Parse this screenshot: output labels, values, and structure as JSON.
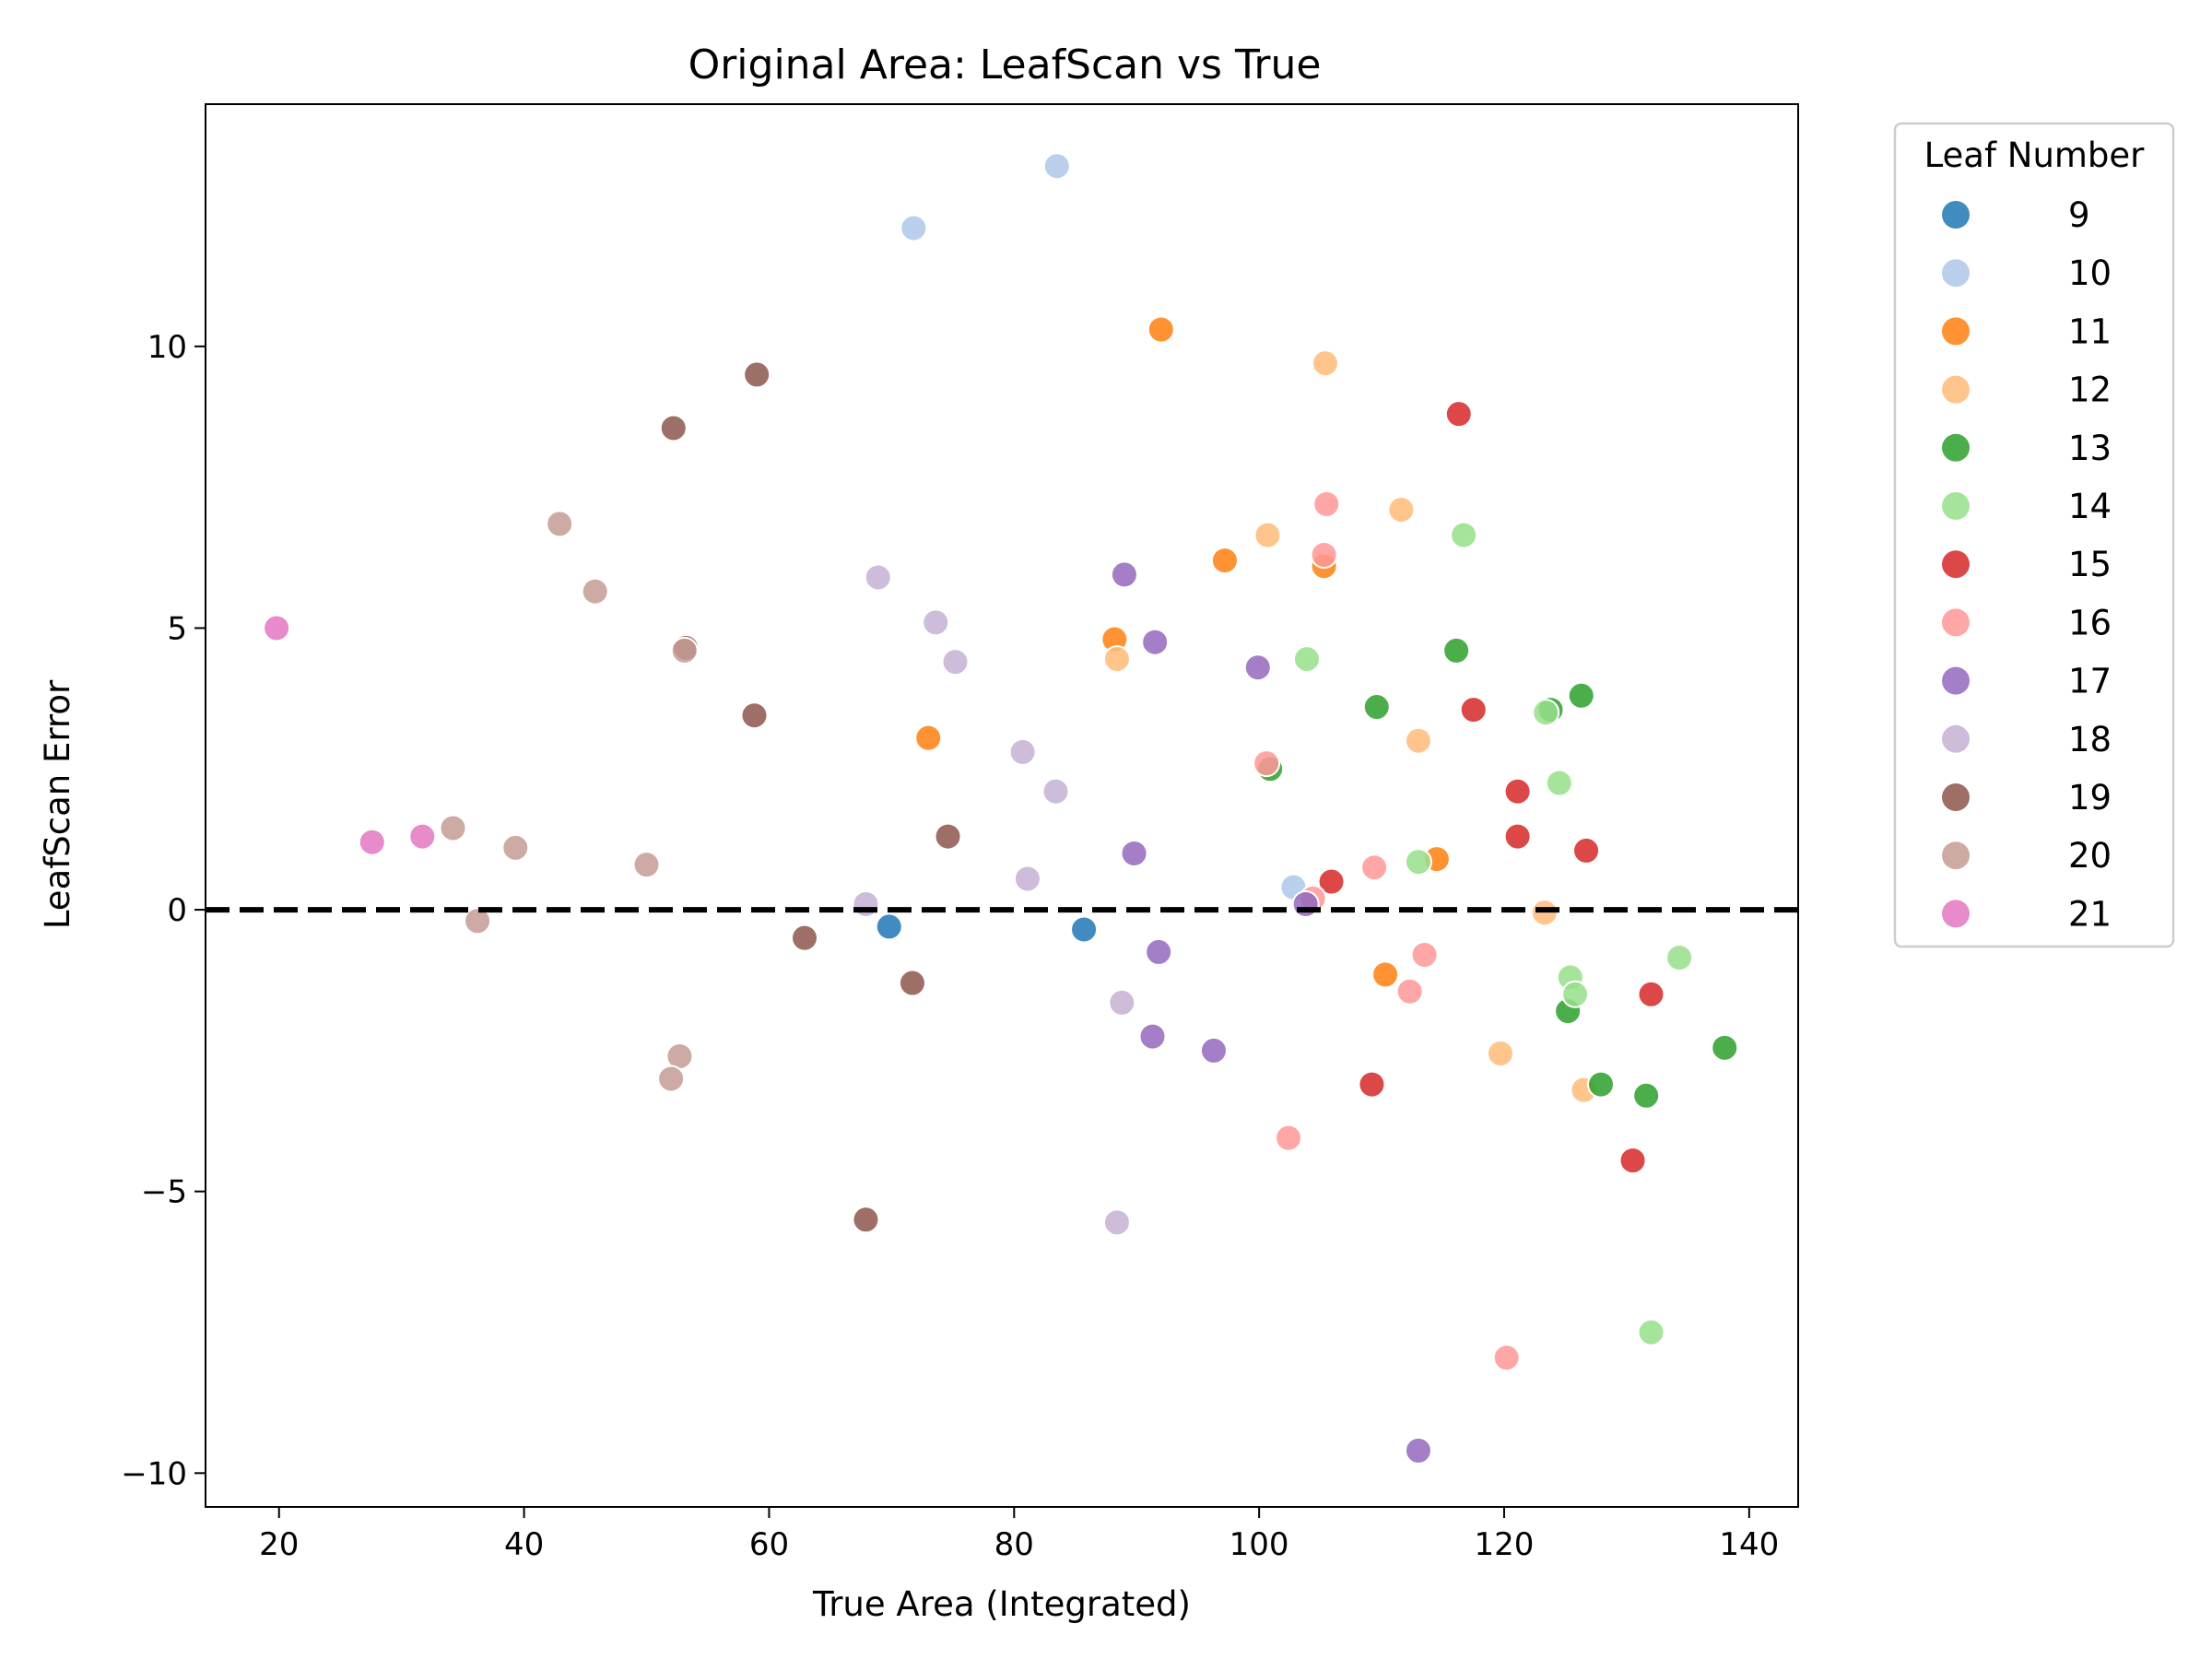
{
  "chart_data": {
    "type": "scatter",
    "title": "Original Area: LeafScan vs True",
    "xlabel": "True Area (Integrated)",
    "ylabel": "LeafScan Error",
    "xlim": [
      14,
      144
    ],
    "ylim": [
      -10.6,
      14.3
    ],
    "xticks": [
      20,
      40,
      60,
      80,
      100,
      120,
      140
    ],
    "yticks": [
      -10,
      -5,
      0,
      5,
      10
    ],
    "ytick_labels": [
      "−10",
      "−5",
      "0",
      "5",
      "10"
    ],
    "reference_line": {
      "y": 0,
      "style": "dashed",
      "color": "#000000"
    },
    "grid": false,
    "legend": {
      "title": "Leaf Number",
      "placement": "outside-right-top"
    },
    "series": [
      {
        "name": "9",
        "color": "#1f77b4",
        "points": [
          [
            69.8,
            -0.3
          ],
          [
            85.7,
            -0.35
          ]
        ]
      },
      {
        "name": "10",
        "color": "#aec7e8",
        "points": [
          [
            83.5,
            13.2
          ],
          [
            71.8,
            12.1
          ],
          [
            102.8,
            0.4
          ]
        ]
      },
      {
        "name": "11",
        "color": "#ff7f0e",
        "points": [
          [
            92.0,
            10.3
          ],
          [
            97.2,
            6.2
          ],
          [
            105.3,
            6.1
          ],
          [
            88.2,
            4.8
          ],
          [
            73.0,
            3.05
          ],
          [
            114.5,
            0.9
          ],
          [
            110.3,
            -1.15
          ]
        ]
      },
      {
        "name": "12",
        "color": "#ffbb78",
        "points": [
          [
            105.4,
            9.7
          ],
          [
            111.6,
            7.1
          ],
          [
            100.7,
            6.65
          ],
          [
            88.4,
            4.45
          ],
          [
            113.0,
            3.0
          ],
          [
            123.3,
            -0.05
          ],
          [
            119.7,
            -2.55
          ],
          [
            126.5,
            -3.2
          ]
        ]
      },
      {
        "name": "13",
        "color": "#2ca02c",
        "points": [
          [
            116.1,
            4.6
          ],
          [
            126.3,
            3.8
          ],
          [
            123.8,
            3.55
          ],
          [
            109.6,
            3.6
          ],
          [
            100.9,
            2.5
          ],
          [
            125.2,
            -1.8
          ],
          [
            127.9,
            -3.1
          ],
          [
            131.6,
            -3.3
          ],
          [
            138.0,
            -2.45
          ]
        ]
      },
      {
        "name": "14",
        "color": "#98df8a",
        "points": [
          [
            116.7,
            6.65
          ],
          [
            103.9,
            4.45
          ],
          [
            123.4,
            3.5
          ],
          [
            124.5,
            2.25
          ],
          [
            113.0,
            0.85
          ],
          [
            125.4,
            -1.2
          ],
          [
            125.8,
            -1.5
          ],
          [
            134.3,
            -0.85
          ],
          [
            132.0,
            -7.5
          ]
        ]
      },
      {
        "name": "15",
        "color": "#d62728",
        "points": [
          [
            116.3,
            8.8
          ],
          [
            117.5,
            3.55
          ],
          [
            121.1,
            2.1
          ],
          [
            121.1,
            1.3
          ],
          [
            126.7,
            1.05
          ],
          [
            105.9,
            0.5
          ],
          [
            132.0,
            -1.5
          ],
          [
            109.2,
            -3.1
          ],
          [
            130.5,
            -4.45
          ]
        ]
      },
      {
        "name": "16",
        "color": "#ff9896",
        "points": [
          [
            105.5,
            7.2
          ],
          [
            105.3,
            6.3
          ],
          [
            100.6,
            2.6
          ],
          [
            109.4,
            0.75
          ],
          [
            104.4,
            0.2
          ],
          [
            113.5,
            -0.8
          ],
          [
            112.3,
            -1.45
          ],
          [
            102.4,
            -4.05
          ],
          [
            120.2,
            -7.95
          ]
        ]
      },
      {
        "name": "17",
        "color": "#9467bd",
        "points": [
          [
            89.0,
            5.95
          ],
          [
            91.5,
            4.75
          ],
          [
            99.9,
            4.3
          ],
          [
            89.8,
            1.0
          ],
          [
            103.8,
            0.1
          ],
          [
            91.8,
            -0.75
          ],
          [
            91.3,
            -2.25
          ],
          [
            96.3,
            -2.5
          ],
          [
            113.0,
            -9.6
          ]
        ]
      },
      {
        "name": "18",
        "color": "#c5b0d5",
        "points": [
          [
            68.9,
            5.9
          ],
          [
            73.6,
            5.1
          ],
          [
            75.2,
            4.4
          ],
          [
            80.7,
            2.8
          ],
          [
            83.4,
            2.1
          ],
          [
            81.1,
            0.55
          ],
          [
            67.9,
            0.1
          ],
          [
            88.8,
            -1.65
          ],
          [
            88.4,
            -5.55
          ]
        ]
      },
      {
        "name": "19",
        "color": "#8c564b",
        "points": [
          [
            59.0,
            9.5
          ],
          [
            52.2,
            8.55
          ],
          [
            53.2,
            4.65
          ],
          [
            58.8,
            3.45
          ],
          [
            74.6,
            1.3
          ],
          [
            62.9,
            -0.5
          ],
          [
            71.7,
            -1.3
          ],
          [
            67.9,
            -5.5
          ]
        ]
      },
      {
        "name": "20",
        "color": "#c49c94",
        "points": [
          [
            42.9,
            6.85
          ],
          [
            45.8,
            5.65
          ],
          [
            53.1,
            4.6
          ],
          [
            34.2,
            1.45
          ],
          [
            39.3,
            1.1
          ],
          [
            50.0,
            0.8
          ],
          [
            36.2,
            -0.2
          ],
          [
            52.7,
            -2.6
          ],
          [
            52.0,
            -3.0
          ]
        ]
      },
      {
        "name": "21",
        "color": "#e377c2",
        "points": [
          [
            19.8,
            5.0
          ],
          [
            31.7,
            1.3
          ],
          [
            27.6,
            1.2
          ]
        ]
      }
    ]
  }
}
